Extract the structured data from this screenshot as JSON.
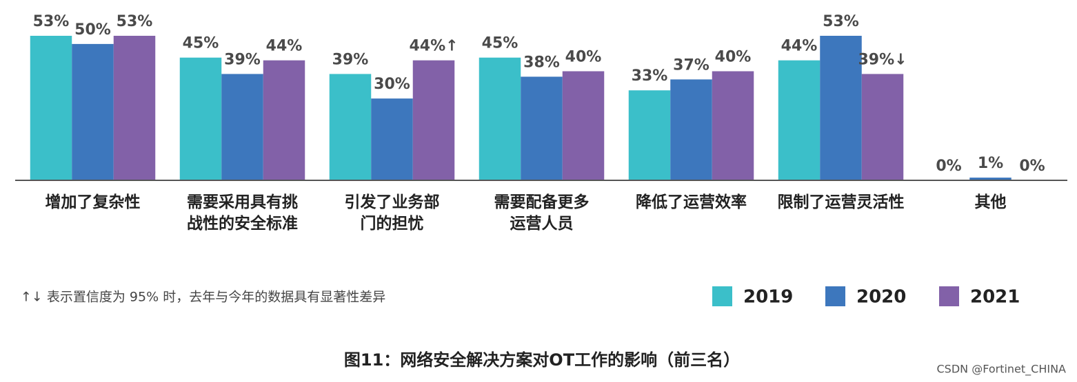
{
  "chart_data": {
    "type": "bar",
    "title": "图11：网络安全解决方案对OT工作的影响（前三名）",
    "footnote": "↑↓ 表示置信度为 95% 时，去年与今年的数据具有显著性差异",
    "watermark": "CSDN @Fortinet_CHINA",
    "categories": [
      "增加了复杂性",
      "需要采用具有挑\n战性的安全标准",
      "引发了业务部\n门的担忧",
      "需要配备更多\n运营人员",
      "降低了运营效率",
      "限制了运营灵活性",
      "其他"
    ],
    "series": [
      {
        "name": "2019",
        "color": "#3bbfc9",
        "values": [
          53,
          45,
          39,
          45,
          33,
          44,
          0
        ],
        "value_labels": [
          "53%",
          "45%",
          "39%",
          "45%",
          "33%",
          "44%",
          "0%"
        ]
      },
      {
        "name": "2020",
        "color": "#3d77bd",
        "values": [
          50,
          39,
          30,
          38,
          37,
          53,
          1
        ],
        "value_labels": [
          "50%",
          "39%",
          "30%",
          "38%",
          "37%",
          "53%",
          "1%"
        ]
      },
      {
        "name": "2021",
        "color": "#8261a8",
        "values": [
          53,
          44,
          44,
          40,
          40,
          39,
          0
        ],
        "value_labels": [
          "53%",
          "44%",
          "44%↑",
          "40%",
          "40%",
          "39%↓",
          "0%"
        ]
      }
    ],
    "ylim": [
      0,
      53
    ]
  }
}
